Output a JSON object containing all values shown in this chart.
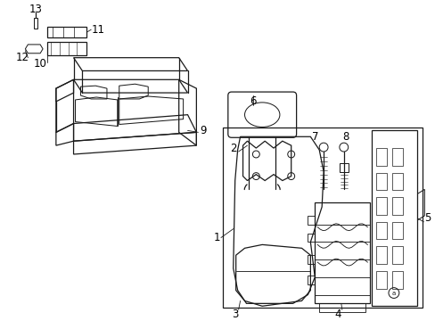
{
  "background_color": "#ffffff",
  "line_color": "#1a1a1a",
  "gray": "#888888"
}
